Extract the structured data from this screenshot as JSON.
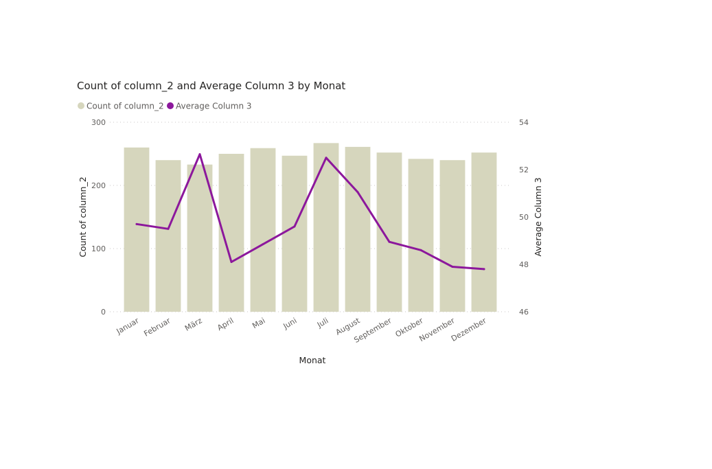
{
  "chart_data": {
    "type": "bar",
    "combo": "bar-line",
    "title": "Count of column_2 and Average Column 3 by Monat",
    "xlabel": "Monat",
    "ylabel": "Count of column_2",
    "y2label": "Average Column 3",
    "categories": [
      "Januar",
      "Februar",
      "März",
      "April",
      "Mai",
      "Juni",
      "Juli",
      "August",
      "September",
      "Oktober",
      "November",
      "Dezember"
    ],
    "series": [
      {
        "name": "Count of column_2",
        "type": "bar",
        "axis": "left",
        "color": "#d6d6bd",
        "values": [
          260,
          240,
          233,
          250,
          259,
          247,
          267,
          261,
          252,
          242,
          240,
          252
        ]
      },
      {
        "name": "Average Column 3",
        "type": "line",
        "axis": "right",
        "color": "#8c179c",
        "values": [
          49.7,
          49.5,
          52.65,
          48.1,
          48.85,
          49.6,
          52.5,
          51.05,
          48.95,
          48.6,
          47.9,
          47.8
        ]
      }
    ],
    "ylim": [
      0,
      300
    ],
    "yticks": [
      0,
      100,
      200,
      300
    ],
    "y2lim": [
      46,
      54
    ],
    "y2ticks": [
      46,
      48,
      50,
      52,
      54
    ],
    "grid": true,
    "legend_position": "top-left"
  }
}
